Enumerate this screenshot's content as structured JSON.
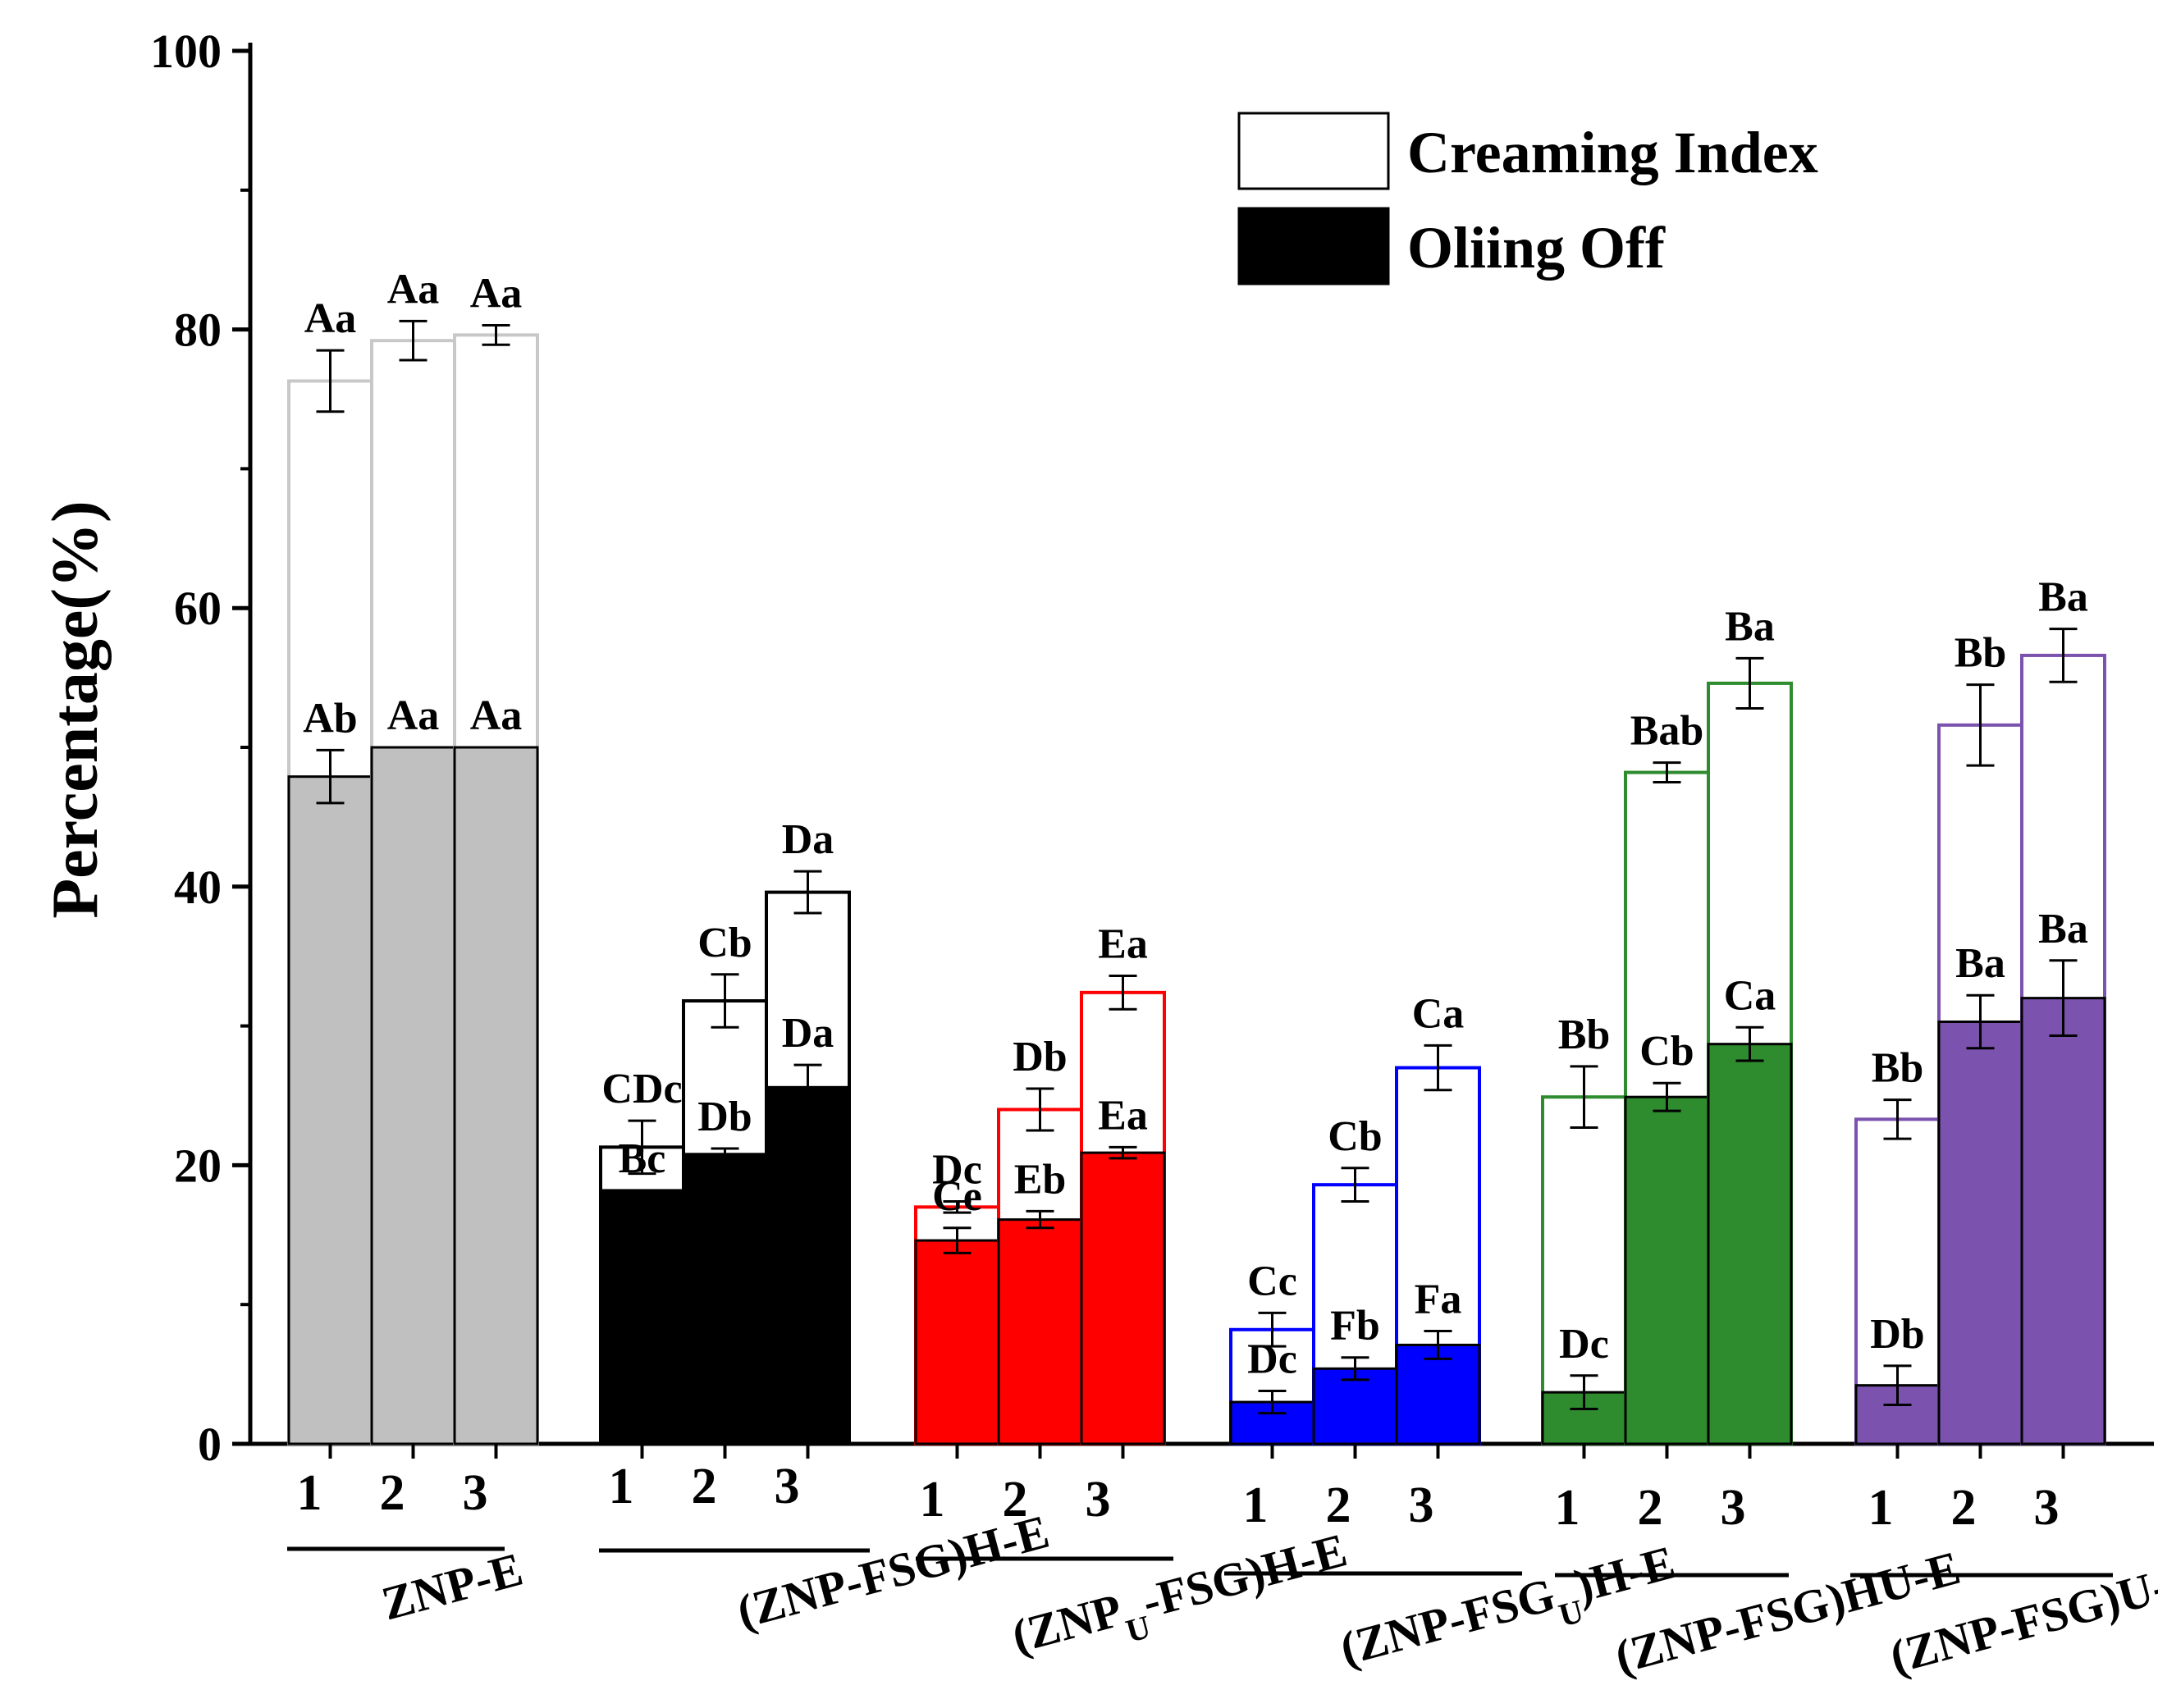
{
  "chart_data": {
    "type": "bar",
    "subtype": "overlaid",
    "title": "",
    "xlabel": "",
    "ylabel": "Percentage(%)",
    "ylim": [
      0,
      100
    ],
    "yticks": [
      "0",
      "20",
      "40",
      "60",
      "80",
      "100"
    ],
    "grid": false,
    "legend": {
      "position": "top-right",
      "entries": [
        {
          "label": "Creaming Index",
          "fill": "#ffffff"
        },
        {
          "label": "Oliing Off",
          "fill": "#000000"
        }
      ]
    },
    "categories": [
      "1",
      "2",
      "3"
    ],
    "groups": [
      {
        "name": "ZNP-E",
        "label_parts": [
          {
            "text": "ZNP-E"
          }
        ],
        "fill": "#c0c0c0",
        "outline": "#c8c8c8",
        "creaming": [
          76.3,
          79.2,
          79.6
        ],
        "creaming_err": [
          2.2,
          1.4,
          0.7
        ],
        "creaming_letters": [
          "Aa",
          "Aa",
          "Aa"
        ],
        "oiling": [
          47.9,
          50.0,
          50.0
        ],
        "oiling_err": [
          1.9,
          0,
          0
        ],
        "oiling_letters": [
          "Ab",
          "Aa",
          "Aa"
        ]
      },
      {
        "name": "(ZNP-FSG)H-E",
        "label_parts": [
          {
            "text": "(ZNP-FSG)H-E"
          }
        ],
        "fill": "#000000",
        "outline": "#000000",
        "creaming": [
          21.3,
          31.8,
          39.6
        ],
        "creaming_err": [
          1.9,
          1.9,
          1.5
        ],
        "creaming_letters": [
          "CDc",
          "Cb",
          "Da"
        ],
        "oiling": [
          18.2,
          20.8,
          25.6
        ],
        "oiling_err": [
          0,
          0.4,
          1.6
        ],
        "oiling_letters": [
          "Bc",
          "Db",
          "Da"
        ]
      },
      {
        "name": "(ZNPU-FSG)H-E",
        "label_parts": [
          {
            "text": "(ZNP"
          },
          {
            "text": "U",
            "sub": true
          },
          {
            "text": "-FSG)H-E"
          }
        ],
        "fill": "#ff0000",
        "outline": "#ff0000",
        "creaming": [
          17.0,
          24.0,
          32.4
        ],
        "creaming_err": [
          0.4,
          1.5,
          1.2
        ],
        "creaming_letters": [
          "Dc",
          "Db",
          "Ea"
        ],
        "oiling": [
          14.6,
          16.1,
          20.9
        ],
        "oiling_err": [
          0.9,
          0.6,
          0.4
        ],
        "oiling_letters": [
          "Ce",
          "Eb",
          "Ea"
        ]
      },
      {
        "name": "(ZNP-FSGU)H-E",
        "label_parts": [
          {
            "text": "(ZNP-FSG"
          },
          {
            "text": "U",
            "sub": true
          },
          {
            "text": ")H-E"
          }
        ],
        "fill": "#0000ff",
        "outline": "#0000ff",
        "creaming": [
          8.2,
          18.6,
          27.0
        ],
        "creaming_err": [
          1.2,
          1.2,
          1.6
        ],
        "creaming_letters": [
          "Cc",
          "Cb",
          "Ca"
        ],
        "oiling": [
          3.0,
          5.4,
          7.1
        ],
        "oiling_err": [
          0.8,
          0.8,
          1.0
        ],
        "oiling_letters": [
          "Dc",
          "Fb",
          "Fa"
        ]
      },
      {
        "name": "(ZNP-FSG)HU-E",
        "label_parts": [
          {
            "text": "(ZNP-FSG)HU-E"
          }
        ],
        "fill": "#2e8b2e",
        "outline": "#2e8b2e",
        "creaming": [
          24.9,
          48.2,
          54.6
        ],
        "creaming_err": [
          2.2,
          0.7,
          1.8
        ],
        "creaming_letters": [
          "Bb",
          "Bab",
          "Ba"
        ],
        "oiling": [
          3.7,
          24.9,
          28.7
        ],
        "oiling_err": [
          1.2,
          1.0,
          1.2
        ],
        "oiling_letters": [
          "Dc",
          "Cb",
          "Ca"
        ]
      },
      {
        "name": "(ZNP-FSG)U-E",
        "label_parts": [
          {
            "text": "(ZNP-FSG)U-E"
          }
        ],
        "fill": "#7b52ae",
        "outline": "#7b52ae",
        "creaming": [
          23.3,
          51.6,
          56.6
        ],
        "creaming_err": [
          1.4,
          2.9,
          1.9
        ],
        "creaming_letters": [
          "Bb",
          "Bb",
          "Ba"
        ],
        "oiling": [
          4.2,
          30.3,
          32.0
        ],
        "oiling_err": [
          1.4,
          1.9,
          2.7
        ],
        "oiling_letters": [
          "Db",
          "Ba",
          "Ba"
        ]
      }
    ]
  }
}
